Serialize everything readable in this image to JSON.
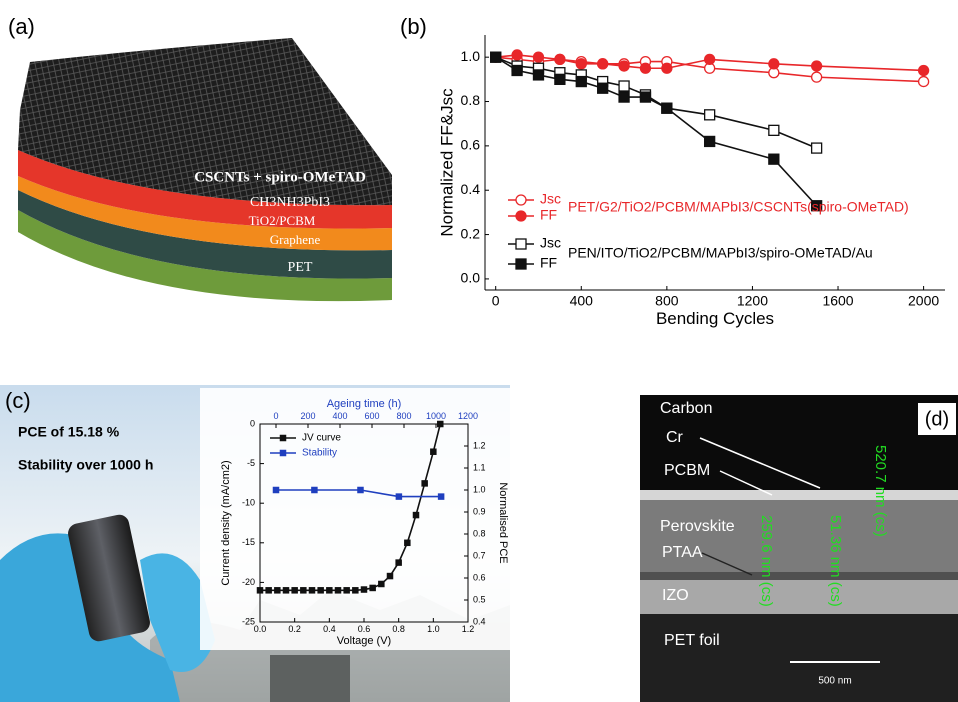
{
  "panels": {
    "a": {
      "label": "(a)",
      "layers": [
        "CSCNTs + spiro-OMeTAD",
        "CH3NH3PbI3",
        "TiO2/PCBM",
        "Graphene",
        "PET"
      ]
    },
    "b": {
      "label": "(b)"
    },
    "c": {
      "label": "(c)",
      "texts": [
        "PCE of 15.18 %",
        "Stability over 1000 h"
      ]
    },
    "d": {
      "label": "(d)",
      "layers": [
        "Carbon",
        "Cr",
        "PCBM",
        "Perovskite",
        "PTAA",
        "IZO",
        "PET foil"
      ],
      "measurements": [
        "520.7 nm (cs)",
        "259.6 nm (cs)",
        "51.36 nm (cs)"
      ],
      "scale_bar": "500 nm"
    }
  },
  "chart_data": [
    {
      "type": "line",
      "xlabel": "Bending Cycles",
      "ylabel": "Normalized FF&Jsc",
      "xlim": [
        -50,
        2100
      ],
      "xticks": [
        0,
        400,
        800,
        1200,
        1600,
        2000
      ],
      "ylim": [
        -0.05,
        1.1
      ],
      "yticks": [
        {
          "value": 0,
          "label": "0.0"
        },
        0.2,
        0.4,
        0.6,
        0.8,
        {
          "value": 1,
          "label": "1.0"
        }
      ],
      "box": false,
      "legend_notes": [
        "PET/G2/TiO2/PCBM/MAPbI3/CSCNTs(spiro-OMeTAD)",
        "PEN/ITO/TiO2/PCBM/MAPbI3/spiro-OMeTAD/Au"
      ],
      "series": [
        {
          "name": "Jsc",
          "color": "#e8272a",
          "marker": "circle",
          "marker_filled": false,
          "x": [
            0,
            100,
            200,
            300,
            400,
            500,
            600,
            700,
            800,
            1000,
            1300,
            1500,
            2000
          ],
          "values": [
            1.0,
            0.99,
            0.98,
            0.99,
            0.98,
            0.97,
            0.97,
            0.98,
            0.98,
            0.95,
            0.93,
            0.91,
            0.89
          ]
        },
        {
          "name": "FF",
          "color": "#e8272a",
          "marker": "circle",
          "marker_filled": true,
          "x": [
            0,
            100,
            200,
            300,
            400,
            500,
            600,
            700,
            800,
            1000,
            1300,
            1500,
            2000
          ],
          "values": [
            1.0,
            1.01,
            1.0,
            0.99,
            0.97,
            0.97,
            0.96,
            0.95,
            0.95,
            0.99,
            0.97,
            0.96,
            0.94
          ]
        },
        {
          "name": "Jsc",
          "color": "#111111",
          "marker": "square",
          "marker_filled": false,
          "x": [
            0,
            100,
            200,
            300,
            400,
            500,
            600,
            700,
            800,
            1000,
            1300,
            1500
          ],
          "values": [
            1.0,
            0.96,
            0.95,
            0.93,
            0.92,
            0.89,
            0.87,
            0.83,
            0.77,
            0.74,
            0.67,
            0.59
          ]
        },
        {
          "name": "FF",
          "color": "#111111",
          "marker": "square",
          "marker_filled": true,
          "x": [
            0,
            100,
            200,
            300,
            400,
            500,
            600,
            700,
            800,
            1000,
            1300,
            1500
          ],
          "values": [
            1.0,
            0.94,
            0.92,
            0.9,
            0.89,
            0.86,
            0.82,
            0.82,
            0.77,
            0.62,
            0.54,
            0.33
          ]
        }
      ]
    },
    {
      "type": "line",
      "xlabel": "Voltage (V)",
      "ylabel": "Current density (mA/cm2)",
      "x2label": "Ageing time (h)",
      "y2label": "Normalised PCE",
      "x2color": "#1f3fbf",
      "xlim": [
        0,
        1.2
      ],
      "xticks": [
        {
          "value": 0,
          "label": "0.0"
        },
        0.2,
        0.4,
        0.6,
        0.8,
        {
          "value": 1,
          "label": "1.0"
        },
        1.2
      ],
      "x2lim": [
        -100,
        1200
      ],
      "x2ticks": [
        0,
        200,
        400,
        600,
        800,
        1000,
        1200
      ],
      "ylim": [
        -25,
        0
      ],
      "yticks": [
        -25,
        -20,
        -15,
        -10,
        -5,
        0
      ],
      "y2lim": [
        0.4,
        1.3
      ],
      "y2ticks": [
        0.4,
        0.5,
        0.6,
        0.7,
        0.8,
        0.9,
        {
          "value": 1,
          "label": "1.0"
        },
        1.1,
        1.2
      ],
      "box": true,
      "series": [
        {
          "name": "JV curve",
          "color": "#111111",
          "marker": "square",
          "marker_filled": true,
          "x": [
            0.0,
            0.05,
            0.1,
            0.15,
            0.2,
            0.25,
            0.3,
            0.35,
            0.4,
            0.45,
            0.5,
            0.55,
            0.6,
            0.65,
            0.7,
            0.75,
            0.8,
            0.85,
            0.9,
            0.95,
            1.0,
            1.04
          ],
          "values": [
            -21,
            -21,
            -21,
            -21,
            -21,
            -21,
            -21,
            -21,
            -21,
            -21,
            -21,
            -21,
            -20.9,
            -20.7,
            -20.2,
            -19.2,
            -17.5,
            -15,
            -11.5,
            -7.5,
            -3.5,
            0
          ]
        },
        {
          "name": "Stability",
          "color": "#1f3fbf",
          "marker": "square",
          "marker_filled": true,
          "axis": "y2",
          "x_axis": "x2",
          "x": [
            0,
            240,
            528,
            768,
            1032
          ],
          "values": [
            1.0,
            1.0,
            1.0,
            0.97,
            0.97
          ]
        }
      ]
    }
  ]
}
